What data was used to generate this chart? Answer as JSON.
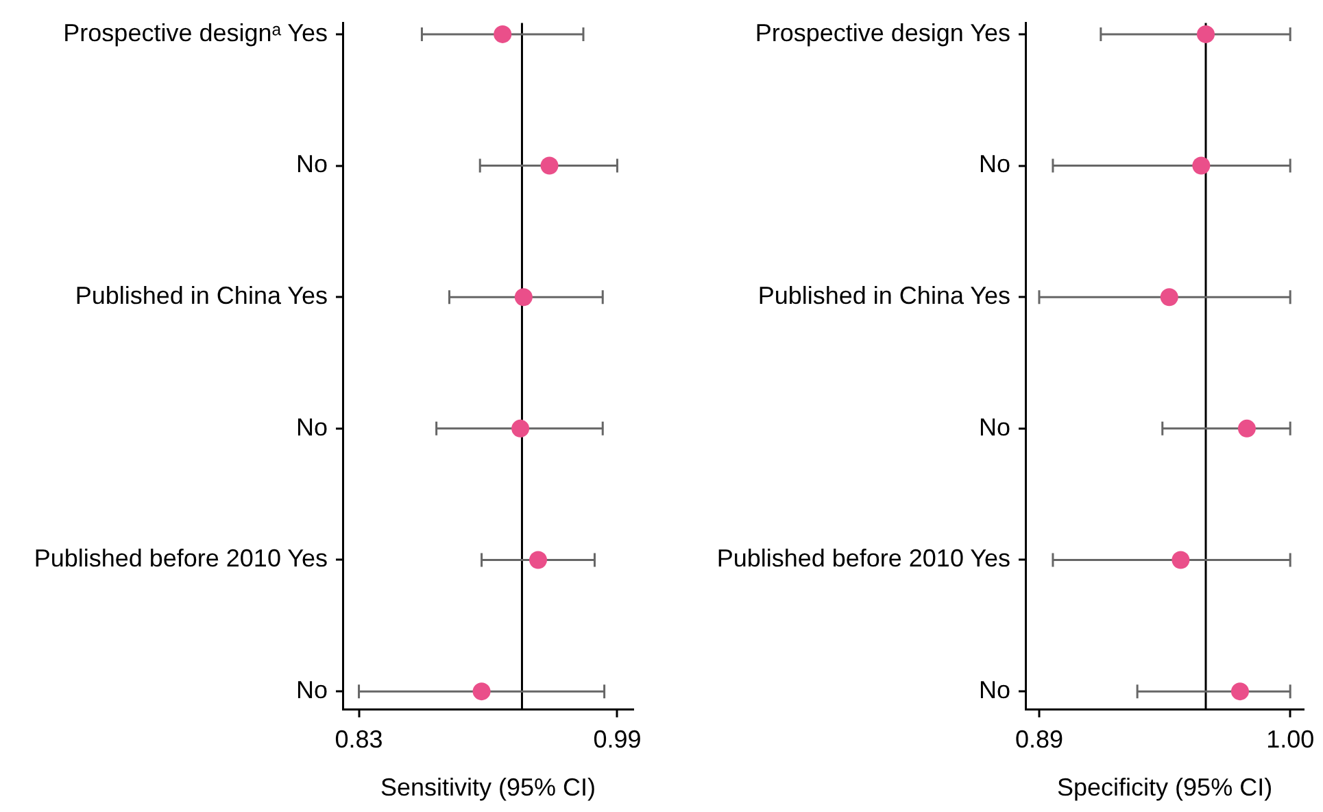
{
  "chart_data": [
    {
      "type": "scatter",
      "orientation": "horizontal",
      "categories": [
        "Prospective designᵃ Yes",
        "No",
        "Published in China Yes",
        "No",
        "Published before 2010 Yes",
        "No"
      ],
      "values": [
        0.919,
        0.948,
        0.932,
        0.93,
        0.941,
        0.906
      ],
      "errors": [
        [
          0.869,
          0.969
        ],
        [
          0.905,
          0.99
        ],
        [
          0.886,
          0.981
        ],
        [
          0.878,
          0.981
        ],
        [
          0.906,
          0.976
        ],
        [
          0.83,
          0.982
        ]
      ],
      "color": "#ea4f8a",
      "marker": "circle",
      "xlim": [
        0.82,
        1.0
      ],
      "xticks": [
        0.83,
        0.99
      ],
      "xlabel": "Sensitivity (95% CI)",
      "ref_lines": [
        {
          "axis": "x",
          "value": 0.931,
          "color": "#000000"
        }
      ]
    },
    {
      "type": "scatter",
      "orientation": "horizontal",
      "categories": [
        "Prospective design Yes",
        "No",
        "Published in China Yes",
        "No",
        "Published before 2010 Yes",
        "No"
      ],
      "values": [
        0.963,
        0.961,
        0.947,
        0.981,
        0.952,
        0.978
      ],
      "errors": [
        [
          0.917,
          1.0
        ],
        [
          0.896,
          1.0
        ],
        [
          0.89,
          1.0
        ],
        [
          0.944,
          1.0
        ],
        [
          0.896,
          1.0
        ],
        [
          0.933,
          1.0
        ]
      ],
      "color": "#ea4f8a",
      "marker": "circle",
      "xlim": [
        0.884,
        1.006
      ],
      "xticks": [
        0.89,
        {
          "value": 1.0,
          "label": "1.00"
        }
      ],
      "xlabel": "Specificity (95% CI)",
      "ref_lines": [
        {
          "axis": "x",
          "value": 0.963,
          "color": "#000000"
        }
      ]
    }
  ]
}
